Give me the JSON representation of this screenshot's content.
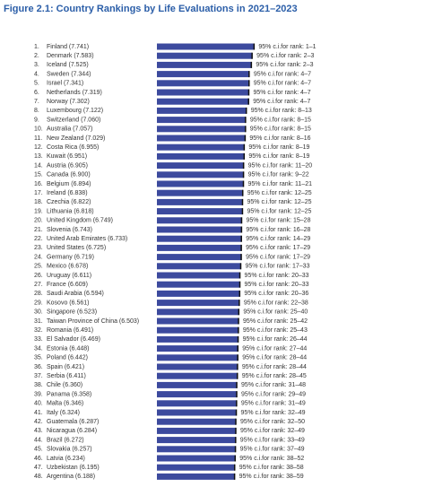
{
  "chart_data": {
    "type": "bar",
    "orientation": "horizontal",
    "title": "Figure 2.1: Country Rankings by Life Evaluations in 2021–2023",
    "color": "#3c4a9e",
    "ranks": [
      "1.",
      "2.",
      "3.",
      "4.",
      "5.",
      "6.",
      "7.",
      "8.",
      "9.",
      "10.",
      "11.",
      "12.",
      "13.",
      "14.",
      "15.",
      "16.",
      "17.",
      "18.",
      "19.",
      "20.",
      "21.",
      "22.",
      "23.",
      "24.",
      "25.",
      "26.",
      "27.",
      "28.",
      "29.",
      "30.",
      "31.",
      "32.",
      "33.",
      "34.",
      "35.",
      "36.",
      "37.",
      "38.",
      "39.",
      "40.",
      "41.",
      "42.",
      "43.",
      "44.",
      "45.",
      "46.",
      "47.",
      "48."
    ],
    "categories": [
      "Finland (7.741)",
      "Denmark (7.583)",
      "Iceland (7.525)",
      "Sweden (7.344)",
      "Israel (7.341)",
      "Netherlands (7.319)",
      "Norway (7.302)",
      "Luxembourg (7.122)",
      "Switzerland (7.060)",
      "Australia (7.057)",
      "New Zealand (7.029)",
      "Costa Rica (6.955)",
      "Kuwait (6.951)",
      "Austria (6.905)",
      "Canada (6.900)",
      "Belgium (6.894)",
      "Ireland (6.838)",
      "Czechia (6.822)",
      "Lithuania (6.818)",
      "United Kingdom (6.749)",
      "Slovenia (6.743)",
      "United Arab Emirates (6.733)",
      "United States (6.725)",
      "Germany (6.719)",
      "Mexico (6.678)",
      "Uruguay (6.611)",
      "France (6.609)",
      "Saudi Arabia (6.594)",
      "Kosovo (6.561)",
      "Singapore (6.523)",
      "Taiwan Province of China (6.503)",
      "Romania (6.491)",
      "El Salvador (6.469)",
      "Estonia (6.448)",
      "Poland (6.442)",
      "Spain (6.421)",
      "Serbia (6.411)",
      "Chile (6.360)",
      "Panama (6.358)",
      "Malta (6.346)",
      "Italy (6.324)",
      "Guatemala (6.287)",
      "Nicaragua (6.284)",
      "Brazil (6.272)",
      "Slovakia (6.257)",
      "Latvia (6.234)",
      "Uzbekistan (6.195)",
      "Argentina (6.188)"
    ],
    "values": [
      7.741,
      7.583,
      7.525,
      7.344,
      7.341,
      7.319,
      7.302,
      7.122,
      7.06,
      7.057,
      7.029,
      6.955,
      6.951,
      6.905,
      6.9,
      6.894,
      6.838,
      6.822,
      6.818,
      6.749,
      6.743,
      6.733,
      6.725,
      6.719,
      6.678,
      6.611,
      6.609,
      6.594,
      6.561,
      6.523,
      6.503,
      6.491,
      6.469,
      6.448,
      6.442,
      6.421,
      6.411,
      6.36,
      6.358,
      6.346,
      6.324,
      6.287,
      6.284,
      6.272,
      6.257,
      6.234,
      6.195,
      6.188
    ],
    "ci_labels": [
      "95% c.i.for rank: 1–1",
      "95% c.i.for rank: 2–3",
      "95% c.i.for rank: 2–3",
      "95% c.i.for rank: 4–7",
      "95% c.i.for rank: 4–7",
      "95% c.i.for rank: 4–7",
      "95% c.i.for rank: 4–7",
      "95% c.i.for rank: 8–13",
      "95% c.i.for rank: 8–15",
      "95% c.i.for rank: 8–15",
      "95% c.i.for rank: 8–16",
      "95% c.i.for rank: 8–19",
      "95% c.i.for rank: 8–19",
      "95% c.i.for rank: 11–20",
      "95% c.i.for rank: 9–22",
      "95% c.i.for rank: 11–21",
      "95% c.i.for rank: 12–25",
      "95% c.i.for rank: 12–25",
      "95% c.i.for rank: 12–25",
      "95% c.i.for rank: 15–28",
      "95% c.i.for rank: 16–28",
      "95% c.i.for rank: 14–29",
      "95% c.i.for rank: 17–29",
      "95% c.i.for rank: 17–29",
      "95% c.i.for rank: 17–33",
      "95% c.i.for rank: 20–33",
      "95% c.i.for rank: 20–33",
      "95% c.i.for rank: 20–36",
      "95% c.i.for rank: 22–38",
      "95% c.i.for rank: 25–40",
      "95% c.i.for rank: 25–42",
      "95% c.i.for rank: 25–43",
      "95% c.i.for rank: 26–44",
      "95% c.i.for rank: 27–44",
      "95% c.i.for rank: 28–44",
      "95% c.i.for rank: 28–44",
      "95% c.i.for rank: 28–45",
      "95% c.i.for rank: 31–48",
      "95% c.i.for rank: 29–49",
      "95% c.i.for rank: 31–49",
      "95% c.i.for rank: 32–49",
      "95% c.i.for rank: 32–50",
      "95% c.i.for rank: 32–49",
      "95% c.i.for rank: 33–49",
      "95% c.i.for rank: 37–49",
      "95% c.i.for rank: 38–52",
      "95% c.i.for rank: 38–58",
      "95% c.i.for rank: 38–59"
    ]
  }
}
